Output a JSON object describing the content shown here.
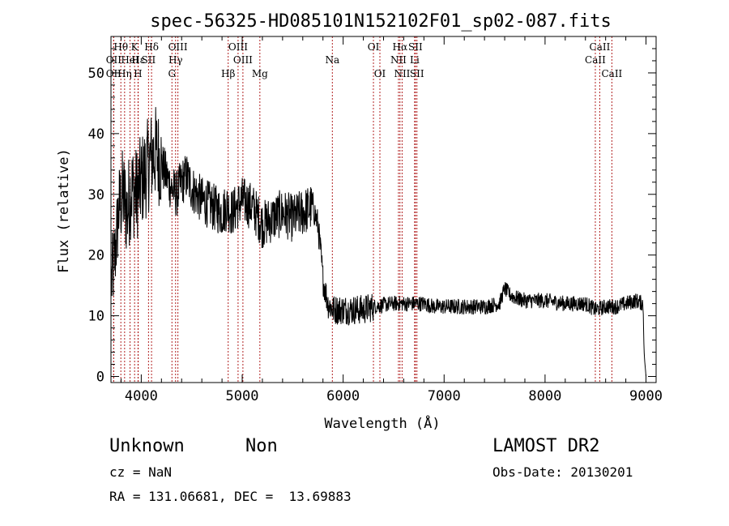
{
  "chart_data": {
    "type": "line",
    "title": "spec-56325-HD085101N152102F01_sp02-087.fits",
    "xlabel": "Wavelength (Å)",
    "ylabel": "Flux (relative)",
    "xlim": [
      3700,
      9100
    ],
    "ylim": [
      -1,
      56
    ],
    "xticks": [
      4000,
      5000,
      6000,
      7000,
      8000,
      9000
    ],
    "yticks": [
      0,
      10,
      20,
      30,
      40,
      50
    ],
    "grid": false,
    "line_color": "#000000",
    "marker_color": "#b22222",
    "continuum": {
      "x": [
        3700,
        3740,
        3780,
        3820,
        3860,
        3900,
        3950,
        4000,
        4050,
        4100,
        4150,
        4200,
        4250,
        4300,
        4350,
        4400,
        4450,
        4500,
        4550,
        4600,
        4700,
        4800,
        4850,
        4900,
        5000,
        5100,
        5200,
        5300,
        5400,
        5500,
        5600,
        5700,
        5750,
        5780,
        5800,
        5850,
        5900,
        6000,
        6100,
        6200,
        6300,
        6400,
        6500,
        6600,
        6700,
        6800,
        6900,
        7000,
        7200,
        7400,
        7550,
        7600,
        7650,
        7700,
        7800,
        8000,
        8200,
        8400,
        8500,
        8600,
        8700,
        8800,
        8900,
        8970,
        8985,
        9000
      ],
      "y": [
        15,
        20,
        28,
        30,
        27,
        31,
        30,
        32,
        34,
        36,
        37,
        35,
        33,
        31,
        30,
        32,
        33,
        31,
        30,
        29,
        28,
        27,
        28,
        27,
        29,
        28,
        25,
        26,
        27,
        26,
        27,
        28,
        25,
        20,
        16,
        12,
        11,
        11,
        11,
        11,
        11.5,
        11.8,
        12,
        12,
        12,
        12,
        11.5,
        11.5,
        11.5,
        11.5,
        12,
        14.5,
        13.5,
        13,
        12.5,
        12.5,
        12,
        12,
        11,
        11.5,
        11.5,
        12,
        12.5,
        12,
        3,
        0
      ]
    },
    "noise": [
      {
        "x": [
          3700,
          3800
        ],
        "amp": 7
      },
      {
        "x": [
          3800,
          4200
        ],
        "amp": 8
      },
      {
        "x": [
          4200,
          5000
        ],
        "amp": 4
      },
      {
        "x": [
          5000,
          5700
        ],
        "amp": 4
      },
      {
        "x": [
          5700,
          6300
        ],
        "amp": 2.5
      },
      {
        "x": [
          6300,
          9100
        ],
        "amp": 1.3
      }
    ],
    "lines": [
      {
        "name": "Hθ",
        "x": 3798,
        "row": 1
      },
      {
        "name": "OII",
        "x": 3727,
        "row": 2
      },
      {
        "name": "OII",
        "x": 3727,
        "row": 3
      },
      {
        "name": "K",
        "x": 3934,
        "row": 1
      },
      {
        "name": "Hε",
        "x": 3970,
        "row": 2
      },
      {
        "name": "HeI",
        "x": 3889,
        "row": 2
      },
      {
        "name": "Hη",
        "x": 3835,
        "row": 3
      },
      {
        "name": "H",
        "x": 3968,
        "row": 3
      },
      {
        "name": "Hδ",
        "x": 4102,
        "row": 1
      },
      {
        "name": "SII",
        "x": 4072,
        "row": 2
      },
      {
        "name": "OIII",
        "x": 4363,
        "row": 1
      },
      {
        "name": "Hγ",
        "x": 4340,
        "row": 2
      },
      {
        "name": "G",
        "x": 4304,
        "row": 3
      },
      {
        "name": "Hβ",
        "x": 4861,
        "row": 3
      },
      {
        "name": "OIII",
        "x": 4959,
        "row": 1
      },
      {
        "name": "OIII",
        "x": 5007,
        "row": 2
      },
      {
        "name": "Mg",
        "x": 5175,
        "row": 3
      },
      {
        "name": "Na",
        "x": 5893,
        "row": 2
      },
      {
        "name": "OI",
        "x": 6300,
        "row": 1
      },
      {
        "name": "OI",
        "x": 6364,
        "row": 3
      },
      {
        "name": "Hα",
        "x": 6563,
        "row": 1
      },
      {
        "name": "NII",
        "x": 6548,
        "row": 2
      },
      {
        "name": "NII",
        "x": 6584,
        "row": 3
      },
      {
        "name": "SII",
        "x": 6716,
        "row": 1
      },
      {
        "name": "Li",
        "x": 6708,
        "row": 2
      },
      {
        "name": "SII",
        "x": 6731,
        "row": 3
      },
      {
        "name": "CaII",
        "x": 8542,
        "row": 1
      },
      {
        "name": "CaII",
        "x": 8498,
        "row": 2
      },
      {
        "name": "CaII",
        "x": 8662,
        "row": 3
      }
    ]
  },
  "info": {
    "class": "Unknown",
    "subclass": "Non",
    "survey": "LAMOST DR2",
    "cz": "cz = NaN",
    "obs_date": "Obs-Date: 20130201",
    "radec": "RA = 131.06681, DEC =  13.69883"
  }
}
